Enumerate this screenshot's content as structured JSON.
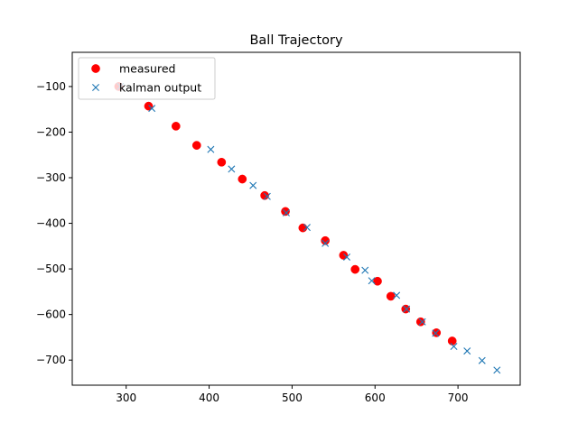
{
  "chart_data": {
    "type": "scatter",
    "title": "Ball Trajectory",
    "xlabel": "",
    "ylabel": "",
    "xlim": [
      235,
      775
    ],
    "ylim": [
      -755,
      -25
    ],
    "xticks": [
      300,
      400,
      500,
      600,
      700
    ],
    "yticks": [
      -100,
      -200,
      -300,
      -400,
      -500,
      -600,
      -700
    ],
    "legend_position": "top-left",
    "grid": false,
    "series": [
      {
        "name": "measured",
        "marker": "circle",
        "color": "#ff0000",
        "points": [
          [
            291,
            -100
          ],
          [
            327,
            -143
          ],
          [
            360,
            -187
          ],
          [
            385,
            -229
          ],
          [
            415,
            -266
          ],
          [
            440,
            -303
          ],
          [
            467,
            -339
          ],
          [
            492,
            -374
          ],
          [
            513,
            -410
          ],
          [
            540,
            -438
          ],
          [
            562,
            -470
          ],
          [
            576,
            -501
          ],
          [
            603,
            -527
          ],
          [
            619,
            -560
          ],
          [
            637,
            -588
          ],
          [
            655,
            -616
          ],
          [
            674,
            -640
          ],
          [
            693,
            -658
          ]
        ]
      },
      {
        "name": "kalman output",
        "marker": "x",
        "color": "#1f77b4",
        "points": [
          [
            293,
            -100
          ],
          [
            331,
            -148
          ],
          [
            402,
            -238
          ],
          [
            427,
            -281
          ],
          [
            453,
            -317
          ],
          [
            470,
            -341
          ],
          [
            493,
            -377
          ],
          [
            518,
            -409
          ],
          [
            540,
            -444
          ],
          [
            566,
            -474
          ],
          [
            588,
            -503
          ],
          [
            596,
            -526
          ],
          [
            626,
            -558
          ],
          [
            638,
            -588
          ],
          [
            657,
            -616
          ],
          [
            673,
            -641
          ],
          [
            695,
            -670
          ],
          [
            711,
            -680
          ],
          [
            729,
            -701
          ],
          [
            747,
            -722
          ]
        ]
      }
    ]
  }
}
